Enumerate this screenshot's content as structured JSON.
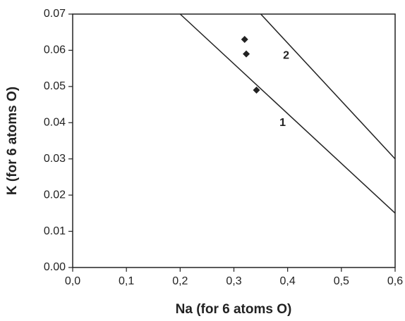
{
  "chart_data": {
    "type": "scatter",
    "x_label": "Na (for 6 atoms O)",
    "y_label": "K (for 6 atoms O)",
    "xlim": [
      0,
      0.6
    ],
    "ylim": [
      0,
      0.07
    ],
    "xticks": [
      {
        "value": 0,
        "label": "0,0"
      },
      {
        "value": 0.1,
        "label": "0,1"
      },
      {
        "value": 0.2,
        "label": "0,2"
      },
      {
        "value": 0.3,
        "label": "0,3"
      },
      {
        "value": 0.4,
        "label": "0,4"
      },
      {
        "value": 0.5,
        "label": "0,5"
      },
      {
        "value": 0.6,
        "label": "0,6"
      }
    ],
    "yticks": [
      {
        "value": 0,
        "label": "0.00"
      },
      0.01,
      0.02,
      0.03,
      0.04,
      0.05,
      0.06,
      0.07
    ],
    "series": [
      {
        "type": "scatter",
        "color": "#222222",
        "x": [
          0.32,
          0.323,
          0.342
        ],
        "values": [
          0.063,
          0.059,
          0.049
        ]
      },
      {
        "type": "line",
        "name": "1",
        "color": "#222222",
        "x": [
          0.2,
          0.6
        ],
        "values": [
          0.07,
          0.015
        ]
      },
      {
        "type": "line",
        "name": "2",
        "color": "#222222",
        "x": [
          0.35,
          0.6
        ],
        "values": [
          0.07,
          0.03
        ]
      }
    ]
  }
}
